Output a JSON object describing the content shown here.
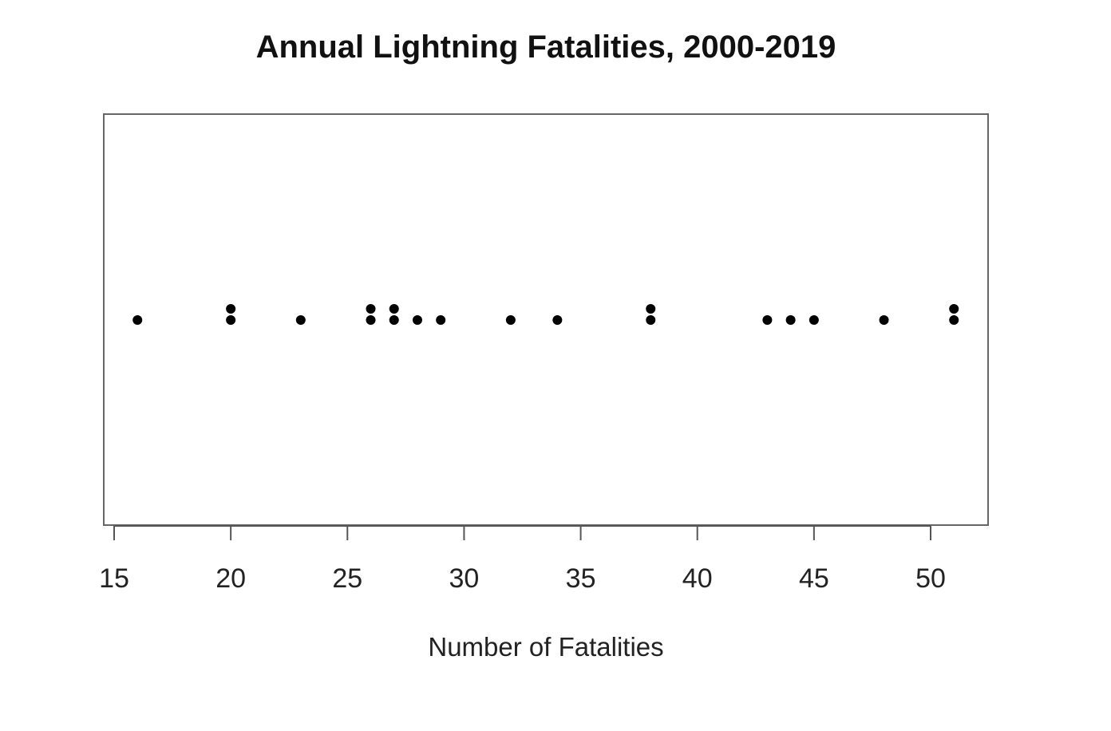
{
  "chart_data": {
    "type": "scatter",
    "subtype": "dot-plot",
    "title": "Annual Lightning Fatalities, 2000-2019",
    "xlabel": "Number of Fatalities",
    "ylabel": "",
    "xlim": [
      15,
      52
    ],
    "xticks": [
      15,
      20,
      25,
      30,
      35,
      40,
      45,
      50
    ],
    "values": [
      16,
      20,
      20,
      23,
      26,
      26,
      27,
      27,
      28,
      29,
      32,
      34,
      38,
      38,
      43,
      44,
      45,
      48,
      51,
      51
    ],
    "grid": false,
    "legend": "none",
    "colors": {
      "point": "#000000",
      "frame": "#666666",
      "axis": "#555555"
    }
  }
}
